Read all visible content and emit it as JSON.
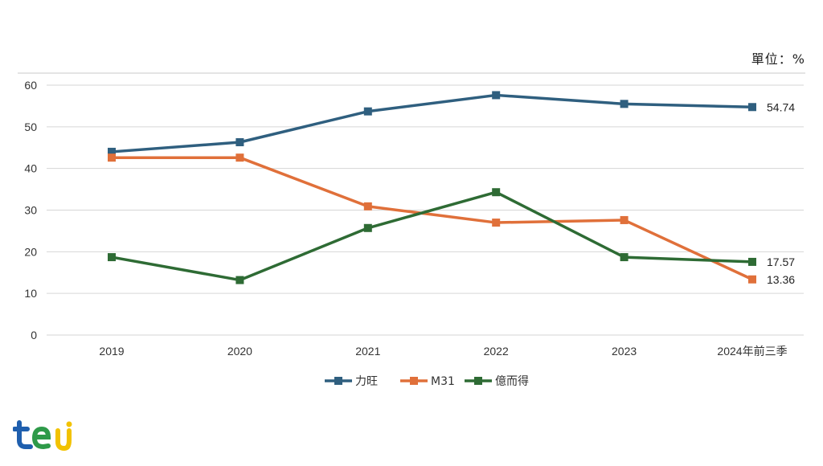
{
  "unit_label": "單位：%",
  "chart_data": {
    "type": "line",
    "title": "",
    "xlabel": "",
    "ylabel": "",
    "categories": [
      "2019",
      "2020",
      "2021",
      "2022",
      "2023",
      "2024年前三季"
    ],
    "ylim": [
      0,
      60
    ],
    "yticks": [
      0,
      10,
      20,
      30,
      40,
      50,
      60
    ],
    "grid": true,
    "legend": "bottom",
    "series": [
      {
        "name": "力旺",
        "color": "#2f5f7f",
        "values": [
          44.0,
          46.3,
          53.7,
          57.6,
          55.5,
          54.74
        ],
        "end_label": "54.74"
      },
      {
        "name": "M31",
        "color": "#e0703a",
        "values": [
          42.6,
          42.6,
          30.9,
          27.0,
          27.6,
          13.36
        ],
        "end_label": "13.36"
      },
      {
        "name": "億而得",
        "color": "#2e6b34",
        "values": [
          18.7,
          13.2,
          25.7,
          34.3,
          18.7,
          17.57
        ],
        "end_label": "17.57"
      }
    ]
  },
  "logo": {
    "text": "tej",
    "colors": [
      "#1f5fae",
      "#f2c200",
      "#2e9a49"
    ]
  }
}
